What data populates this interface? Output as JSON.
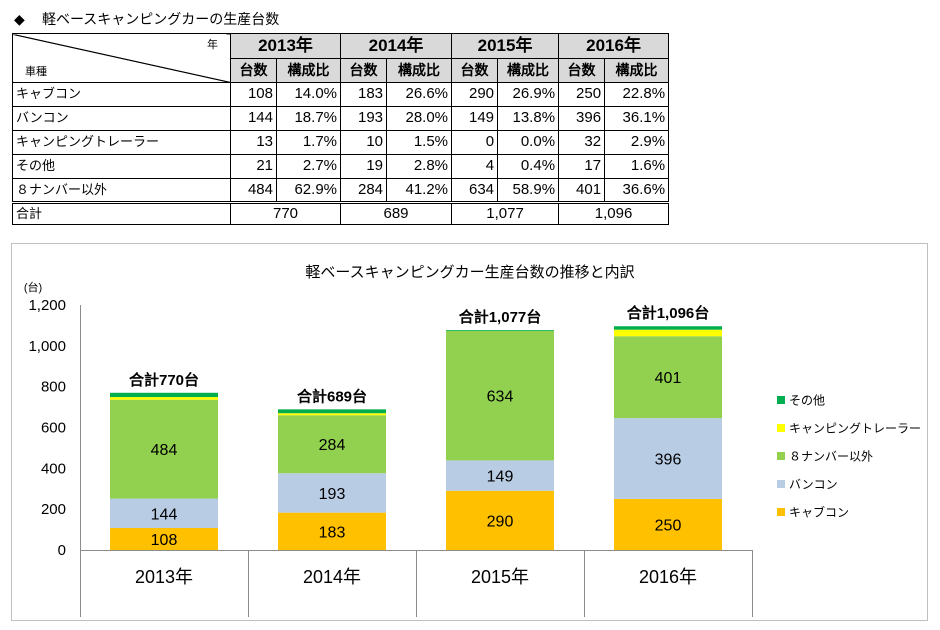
{
  "heading": {
    "marker": "◆",
    "text": "軽ベースキャンピングカーの生産台数"
  },
  "table": {
    "corner_top": "年",
    "corner_bottom": "車種",
    "years": [
      "2013年",
      "2014年",
      "2015年",
      "2016年"
    ],
    "sub_headers": [
      "台数",
      "構成比"
    ],
    "rows": [
      {
        "label": "キャブコン",
        "cells": [
          "108",
          "14.0%",
          "183",
          "26.6%",
          "290",
          "26.9%",
          "250",
          "22.8%"
        ]
      },
      {
        "label": "バンコン",
        "cells": [
          "144",
          "18.7%",
          "193",
          "28.0%",
          "149",
          "13.8%",
          "396",
          "36.1%"
        ]
      },
      {
        "label": "キャンピングトレーラー",
        "cells": [
          "13",
          "1.7%",
          "10",
          "1.5%",
          "0",
          "0.0%",
          "32",
          "2.9%"
        ]
      },
      {
        "label": "その他",
        "cells": [
          "21",
          "2.7%",
          "19",
          "2.8%",
          "4",
          "0.4%",
          "17",
          "1.6%"
        ]
      },
      {
        "label": "８ナンバー以外",
        "cells": [
          "484",
          "62.9%",
          "284",
          "41.2%",
          "634",
          "58.9%",
          "401",
          "36.6%"
        ]
      }
    ],
    "total": {
      "label": "合計",
      "values": [
        "770",
        "689",
        "1,077",
        "1,096"
      ]
    }
  },
  "chart_data": {
    "type": "bar",
    "stacked": true,
    "title": "軽ベースキャンピングカー生産台数の推移と内訳",
    "ylabel": "(台)",
    "xlabel": "",
    "ylim": [
      0,
      1200
    ],
    "yticks": [
      0,
      200,
      400,
      600,
      800,
      1000,
      1200
    ],
    "ytick_labels": [
      "0",
      "200",
      "400",
      "600",
      "800",
      "1,000",
      "1,200"
    ],
    "grid": false,
    "categories": [
      "2013年",
      "2014年",
      "2015年",
      "2016年"
    ],
    "series": [
      {
        "name": "キャブコン",
        "values": [
          108,
          183,
          290,
          250
        ],
        "color": "#FFC000",
        "data_labels": true
      },
      {
        "name": "バンコン",
        "values": [
          144,
          193,
          149,
          396
        ],
        "color": "#B8CCE4",
        "data_labels": true
      },
      {
        "name": "８ナンバー以外",
        "values": [
          484,
          284,
          634,
          401
        ],
        "color": "#92D050",
        "data_labels": true
      },
      {
        "name": "キャンピングトレーラー",
        "values": [
          13,
          10,
          0,
          32
        ],
        "color": "#FFFF00",
        "data_labels": false
      },
      {
        "name": "その他",
        "values": [
          21,
          19,
          4,
          17
        ],
        "color": "#00B050",
        "data_labels": false
      }
    ],
    "total_labels": [
      "合計770台",
      "合計689台",
      "合計1,077台",
      "合計1,096台"
    ],
    "legend": {
      "position": "right",
      "reversed": true
    }
  }
}
